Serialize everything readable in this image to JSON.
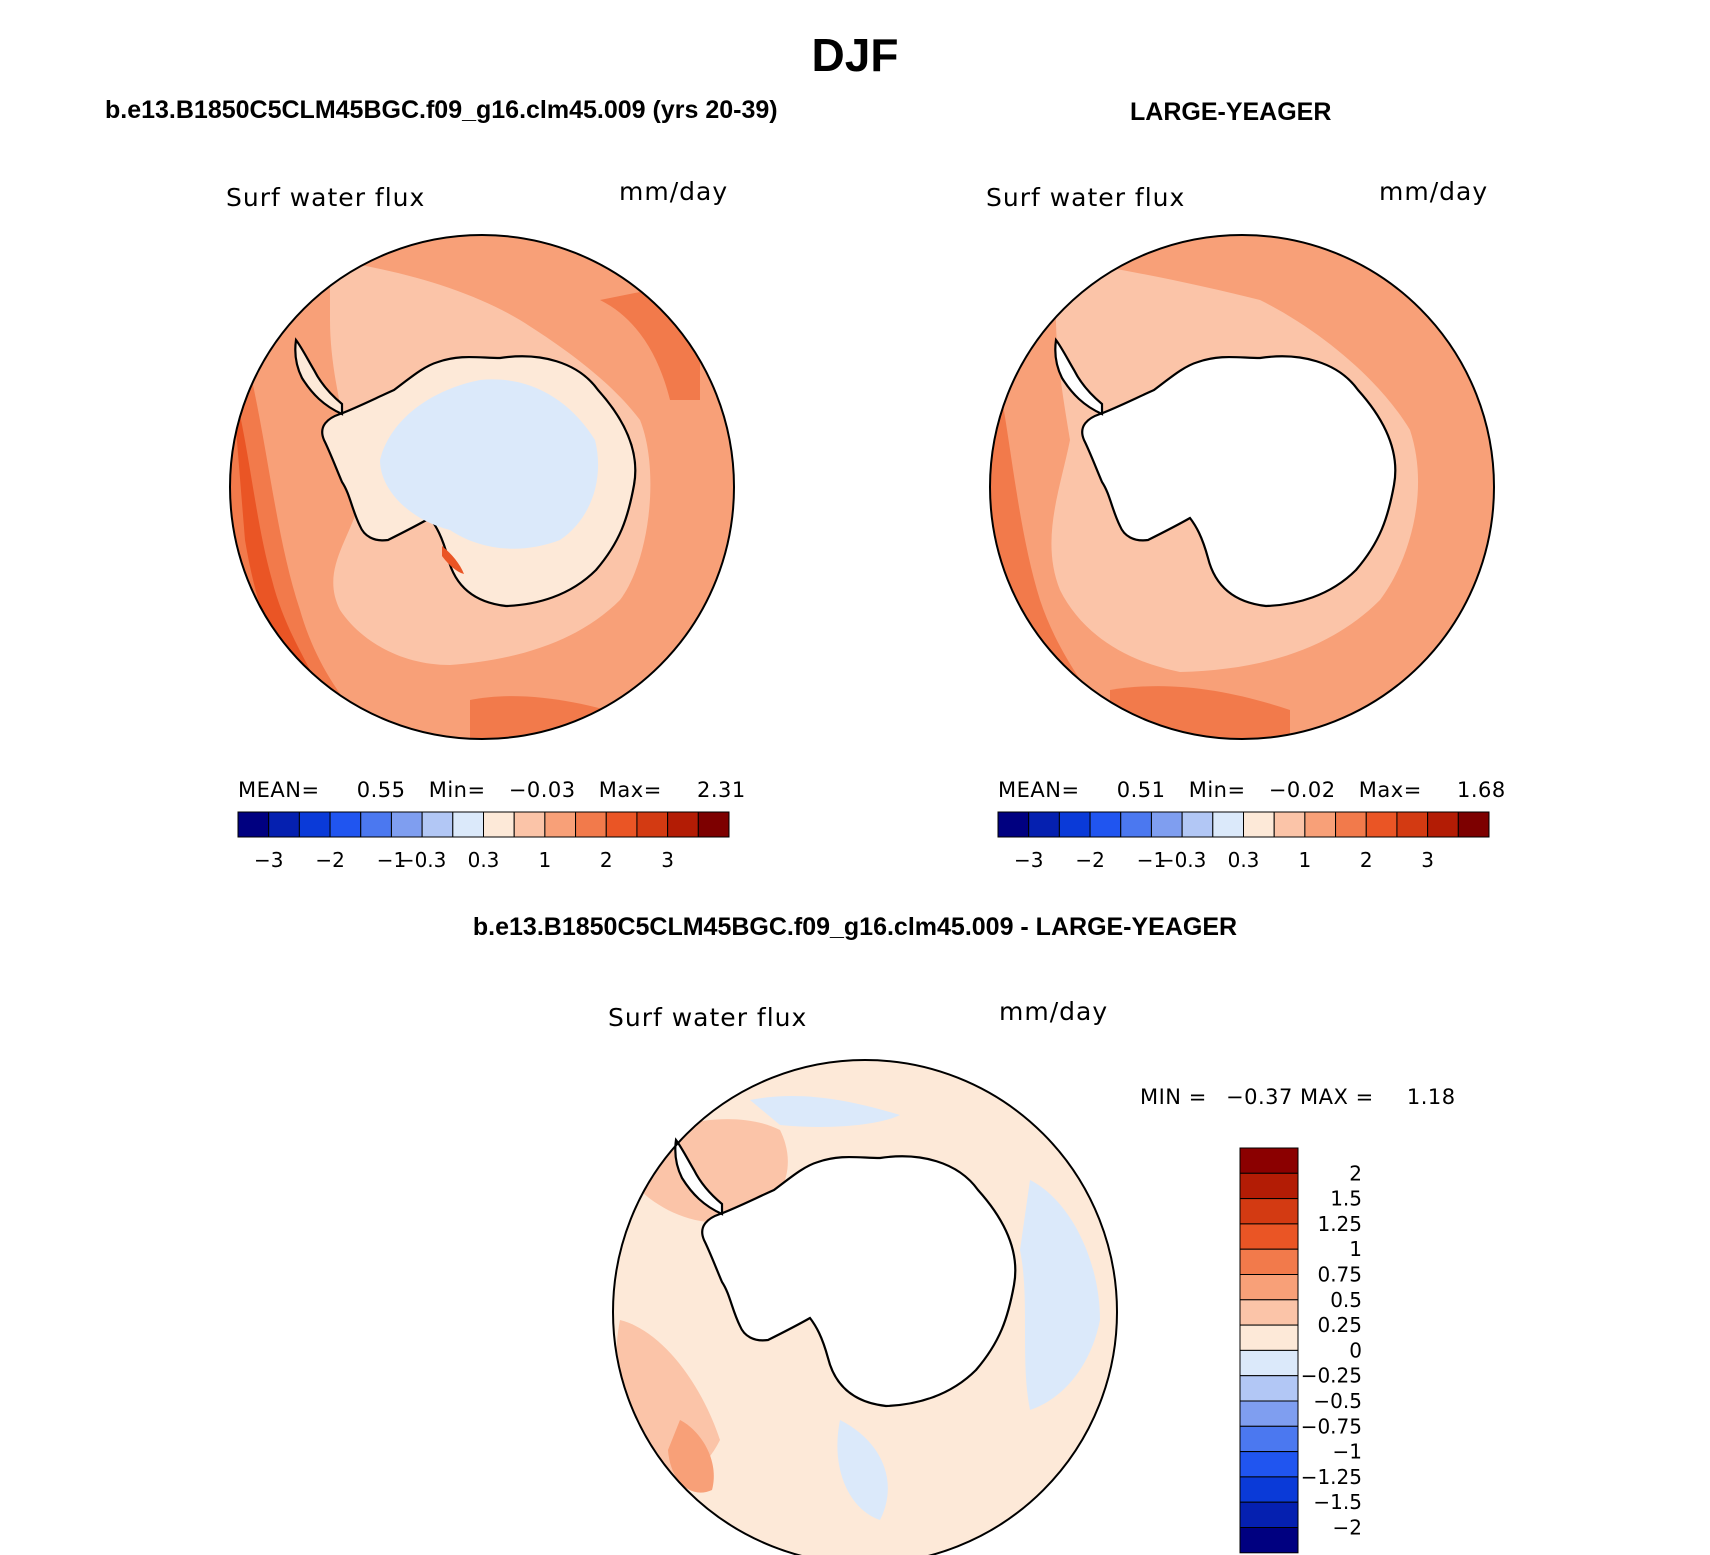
{
  "page": {
    "title": "DJF",
    "left_panel_title": "b.e13.B1850C5CLM45BGC.f09_g16.clm45.009 (yrs 20-39)",
    "right_panel_title": "LARGE-YEAGER",
    "diff_panel_title": "b.e13.B1850C5CLM45BGC.f09_g16.clm45.009 - LARGE-YEAGER"
  },
  "panels": {
    "left": {
      "variable": "Surf water flux",
      "units": "mm/day",
      "mean_label": "MEAN=",
      "mean": "0.55",
      "min_label": "Min=",
      "min": "−0.03",
      "max_label": "Max=",
      "max": "2.31"
    },
    "right": {
      "variable": "Surf water flux",
      "units": "mm/day",
      "mean_label": "MEAN=",
      "mean": "0.51",
      "min_label": "Min=",
      "min": "−0.02",
      "max_label": "Max=",
      "max": "1.68"
    },
    "diff": {
      "variable": "Surf water flux",
      "units": "mm/day",
      "min_label": "MIN =",
      "min": "−0.37",
      "max_label": "MAX =",
      "max": "1.18"
    }
  },
  "colorbar_abs": {
    "colors": [
      "#000080",
      "#0520b0",
      "#0a3ad8",
      "#2055f0",
      "#4b78f0",
      "#7f9ef0",
      "#b2c7f5",
      "#dbe9fa",
      "#fde9d8",
      "#fbc4a8",
      "#f8a078",
      "#f27a4b",
      "#ea5525",
      "#d33a12",
      "#b31c05",
      "#7d0000"
    ],
    "ticks": [
      "−3",
      "−2",
      "−1",
      "−0.3",
      "0.3",
      "1",
      "2",
      "3"
    ]
  },
  "colorbar_diff": {
    "colors_top_to_bottom": [
      "#8b0000",
      "#b31c05",
      "#d33a12",
      "#ea5525",
      "#f27a4b",
      "#f8a078",
      "#fbc4a8",
      "#fde9d8",
      "#dbe9fa",
      "#b2c7f5",
      "#7f9ef0",
      "#4b78f0",
      "#2055f0",
      "#0a3ad8",
      "#0520b0",
      "#000080"
    ],
    "labels": [
      "2",
      "1.5",
      "1.25",
      "1",
      "0.75",
      "0.5",
      "0.25",
      "0",
      "−0.25",
      "−0.5",
      "−0.75",
      "−1",
      "−1.25",
      "−1.5",
      "−2"
    ]
  },
  "chart_data": [
    {
      "type": "heatmap",
      "title": "Surf water flux",
      "subtitle": "b.e13.B1850C5CLM45BGC.f09_g16.clm45.009 (yrs 20-39)",
      "season": "DJF",
      "units": "mm/day",
      "projection": "south polar stereographic",
      "stats": {
        "mean": 0.55,
        "min": -0.03,
        "max": 2.31
      },
      "levels": [
        -3,
        -2,
        -1,
        -0.3,
        0.3,
        1,
        2,
        3
      ]
    },
    {
      "type": "heatmap",
      "title": "Surf water flux",
      "subtitle": "LARGE-YEAGER",
      "season": "DJF",
      "units": "mm/day",
      "projection": "south polar stereographic",
      "stats": {
        "mean": 0.51,
        "min": -0.02,
        "max": 1.68
      },
      "levels": [
        -3,
        -2,
        -1,
        -0.3,
        0.3,
        1,
        2,
        3
      ]
    },
    {
      "type": "heatmap",
      "title": "Surf water flux",
      "subtitle": "b.e13.B1850C5CLM45BGC.f09_g16.clm45.009 - LARGE-YEAGER",
      "season": "DJF",
      "units": "mm/day",
      "projection": "south polar stereographic",
      "stats": {
        "min": -0.37,
        "max": 1.18
      },
      "levels": [
        -2,
        -1.5,
        -1.25,
        -1,
        -0.75,
        -0.5,
        -0.25,
        0,
        0.25,
        0.5,
        0.75,
        1,
        1.25,
        1.5,
        2
      ]
    }
  ]
}
